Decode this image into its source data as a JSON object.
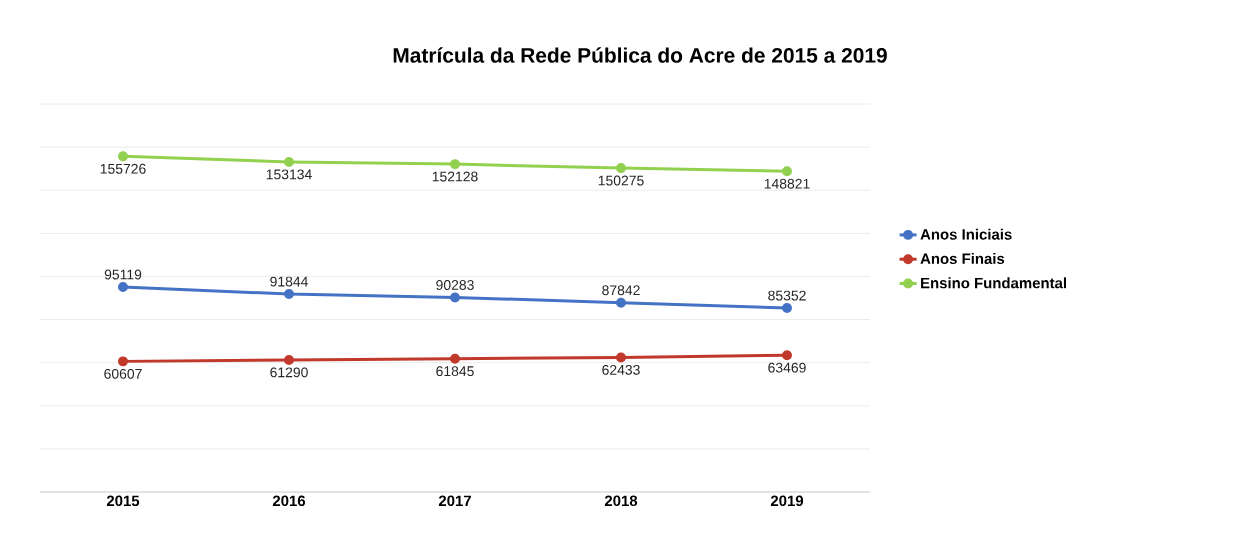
{
  "chart_data": {
    "type": "line",
    "title": "Matrícula da Rede Pública do Acre de 2015 a 2019",
    "categories": [
      "2015",
      "2016",
      "2017",
      "2018",
      "2019"
    ],
    "series": [
      {
        "name": "Anos Iniciais",
        "color": "#4472c4",
        "values": [
          95119,
          91844,
          90283,
          87842,
          85352
        ]
      },
      {
        "name": "Anos Finais",
        "color": "#c0392b",
        "values": [
          60607,
          61290,
          61845,
          62433,
          63469
        ]
      },
      {
        "name": "Ensino Fundamental",
        "color": "#92d050",
        "values": [
          155726,
          153134,
          152128,
          150275,
          148821
        ]
      }
    ],
    "tick_labels": "x",
    "grid": "y",
    "legend": "right",
    "marker": "circle",
    "line_style": "solid",
    "data_labels": true
  }
}
